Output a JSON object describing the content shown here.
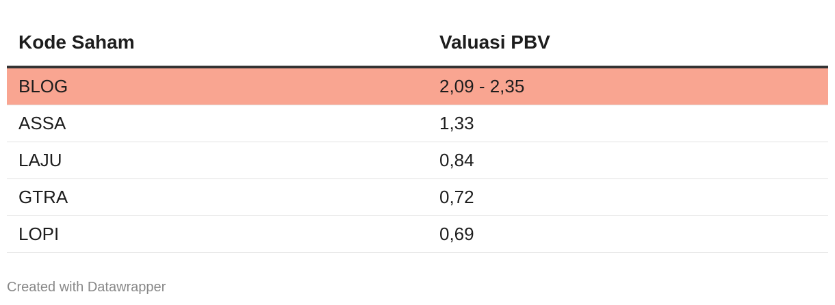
{
  "table": {
    "header": [
      "Kode Saham",
      "Valuasi PBV"
    ],
    "rows": [
      [
        "BLOG",
        "2,09 - 2,35"
      ],
      [
        "ASSA",
        "1,33"
      ],
      [
        "LAJU",
        "0,84"
      ],
      [
        "GTRA",
        "0,72"
      ],
      [
        "LOPI",
        "0,69"
      ]
    ]
  },
  "footer": "Created with Datawrapper"
}
